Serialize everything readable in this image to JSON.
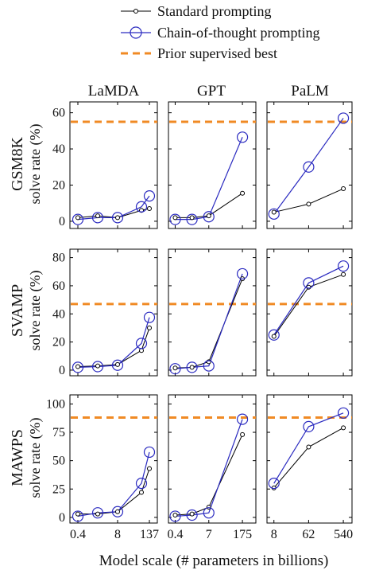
{
  "legend": {
    "standard": "Standard prompting",
    "cot": "Chain-of-thought prompting",
    "prior": "Prior supervised best"
  },
  "xlabel": "Model scale (# parameters in billions)",
  "colors": {
    "standard": "#000000",
    "cot": "#2b2bc0",
    "prior": "#f08a24"
  },
  "chart_data": {
    "type": "line",
    "columns": [
      {
        "title": "LaMDA",
        "x_positions": [
          0,
          1,
          2,
          3.2,
          3.6
        ],
        "tick_labels": [
          "0.4",
          "8",
          "137"
        ],
        "tick_positions": [
          0,
          2,
          3.6
        ],
        "x_range": [
          -0.4,
          4.0
        ]
      },
      {
        "title": "GPT",
        "x_positions": [
          0,
          1,
          2,
          4.0
        ],
        "tick_labels": [
          "0.4",
          "7",
          "175"
        ],
        "tick_positions": [
          0,
          2,
          4.0
        ],
        "x_range": [
          -0.4,
          4.8
        ]
      },
      {
        "title": "PaLM",
        "x_positions": [
          0,
          1,
          2
        ],
        "tick_labels": [
          "8",
          "62",
          "540"
        ],
        "tick_positions": [
          0,
          1,
          2
        ],
        "x_range": [
          -0.2,
          2.25
        ]
      }
    ],
    "rows": [
      {
        "title": "GSM8K",
        "ylabel": "solve rate (%)",
        "ylim": [
          -4,
          66
        ],
        "yticks": [
          0,
          20,
          40,
          60
        ],
        "prior_best": 55,
        "panels": [
          {
            "standard": [
              2,
              3,
              2,
              6,
              7
            ],
            "cot": [
              1,
              2,
              2,
              8,
              14
            ]
          },
          {
            "standard": [
              2,
              2,
              3,
              15.5
            ],
            "cot": [
              1,
              1,
              2.5,
              46.5
            ]
          },
          {
            "standard": [
              5,
              9.5,
              18
            ],
            "cot": [
              4,
              30,
              57
            ]
          }
        ]
      },
      {
        "title": "SVAMP",
        "ylabel": "solve rate (%)",
        "ylim": [
          -4,
          86
        ],
        "yticks": [
          0,
          20,
          40,
          60,
          80
        ],
        "prior_best": 47,
        "panels": [
          {
            "standard": [
              2.5,
              3,
              4,
              14,
              30
            ],
            "cot": [
              2,
              2.5,
              3.5,
              19,
              37.5
            ]
          },
          {
            "standard": [
              1.5,
              2,
              6,
              65
            ],
            "cot": [
              1,
              2,
              3,
              68.5
            ]
          },
          {
            "standard": [
              24,
              59,
              68
            ],
            "cot": [
              25,
              62,
              74
            ]
          }
        ]
      },
      {
        "title": "MAWPS",
        "ylabel": "solve rate (%)",
        "ylim": [
          -5,
          108
        ],
        "yticks": [
          0,
          25,
          50,
          75,
          100
        ],
        "prior_best": 88,
        "panels": [
          {
            "standard": [
              3,
              3,
              5,
              22,
              43
            ],
            "cot": [
              1,
              4,
              5,
              30,
              57.5
            ]
          },
          {
            "standard": [
              2,
              3,
              9,
              73
            ],
            "cot": [
              1,
              2,
              4,
              86.5
            ]
          },
          {
            "standard": [
              26,
              62,
              79
            ],
            "cot": [
              30,
              80,
              92
            ]
          }
        ]
      }
    ]
  }
}
